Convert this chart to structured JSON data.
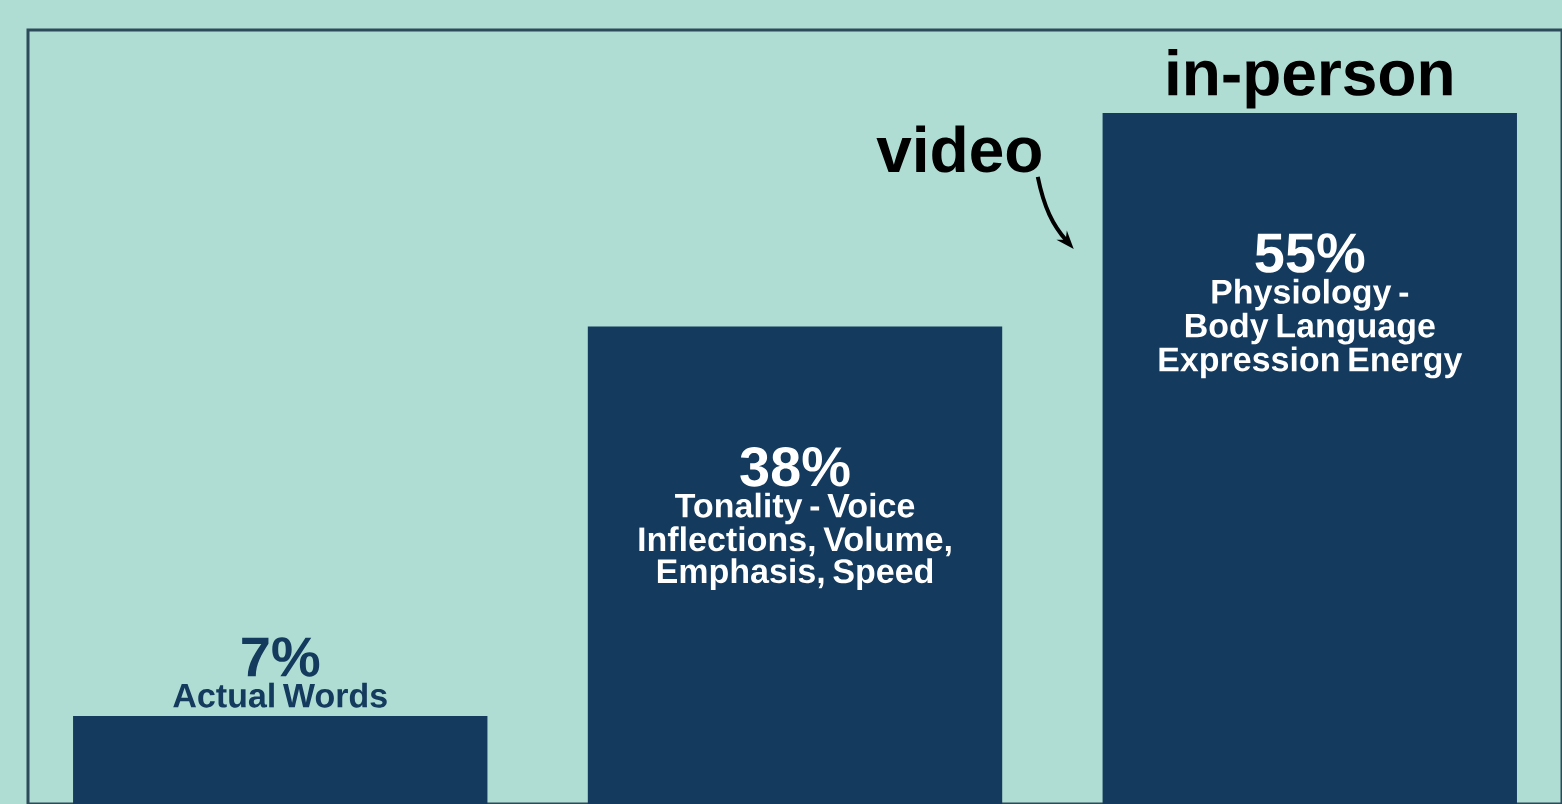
{
  "chart_data": {
    "type": "bar",
    "categories": [
      "Actual Words",
      "Tonality - Voice Inflections, Volume, Emphasis, Speed",
      "Physiology - Body Language Expression Energy"
    ],
    "values": [
      7,
      38,
      55
    ],
    "value_labels": [
      "7%",
      "38%",
      "55%"
    ],
    "color": "#143a5e",
    "annotations": [
      "video",
      {
        "text": "in-person",
        "x": "Physiology - Body Language Expression Energy",
        "y": 55
      }
    ]
  }
}
